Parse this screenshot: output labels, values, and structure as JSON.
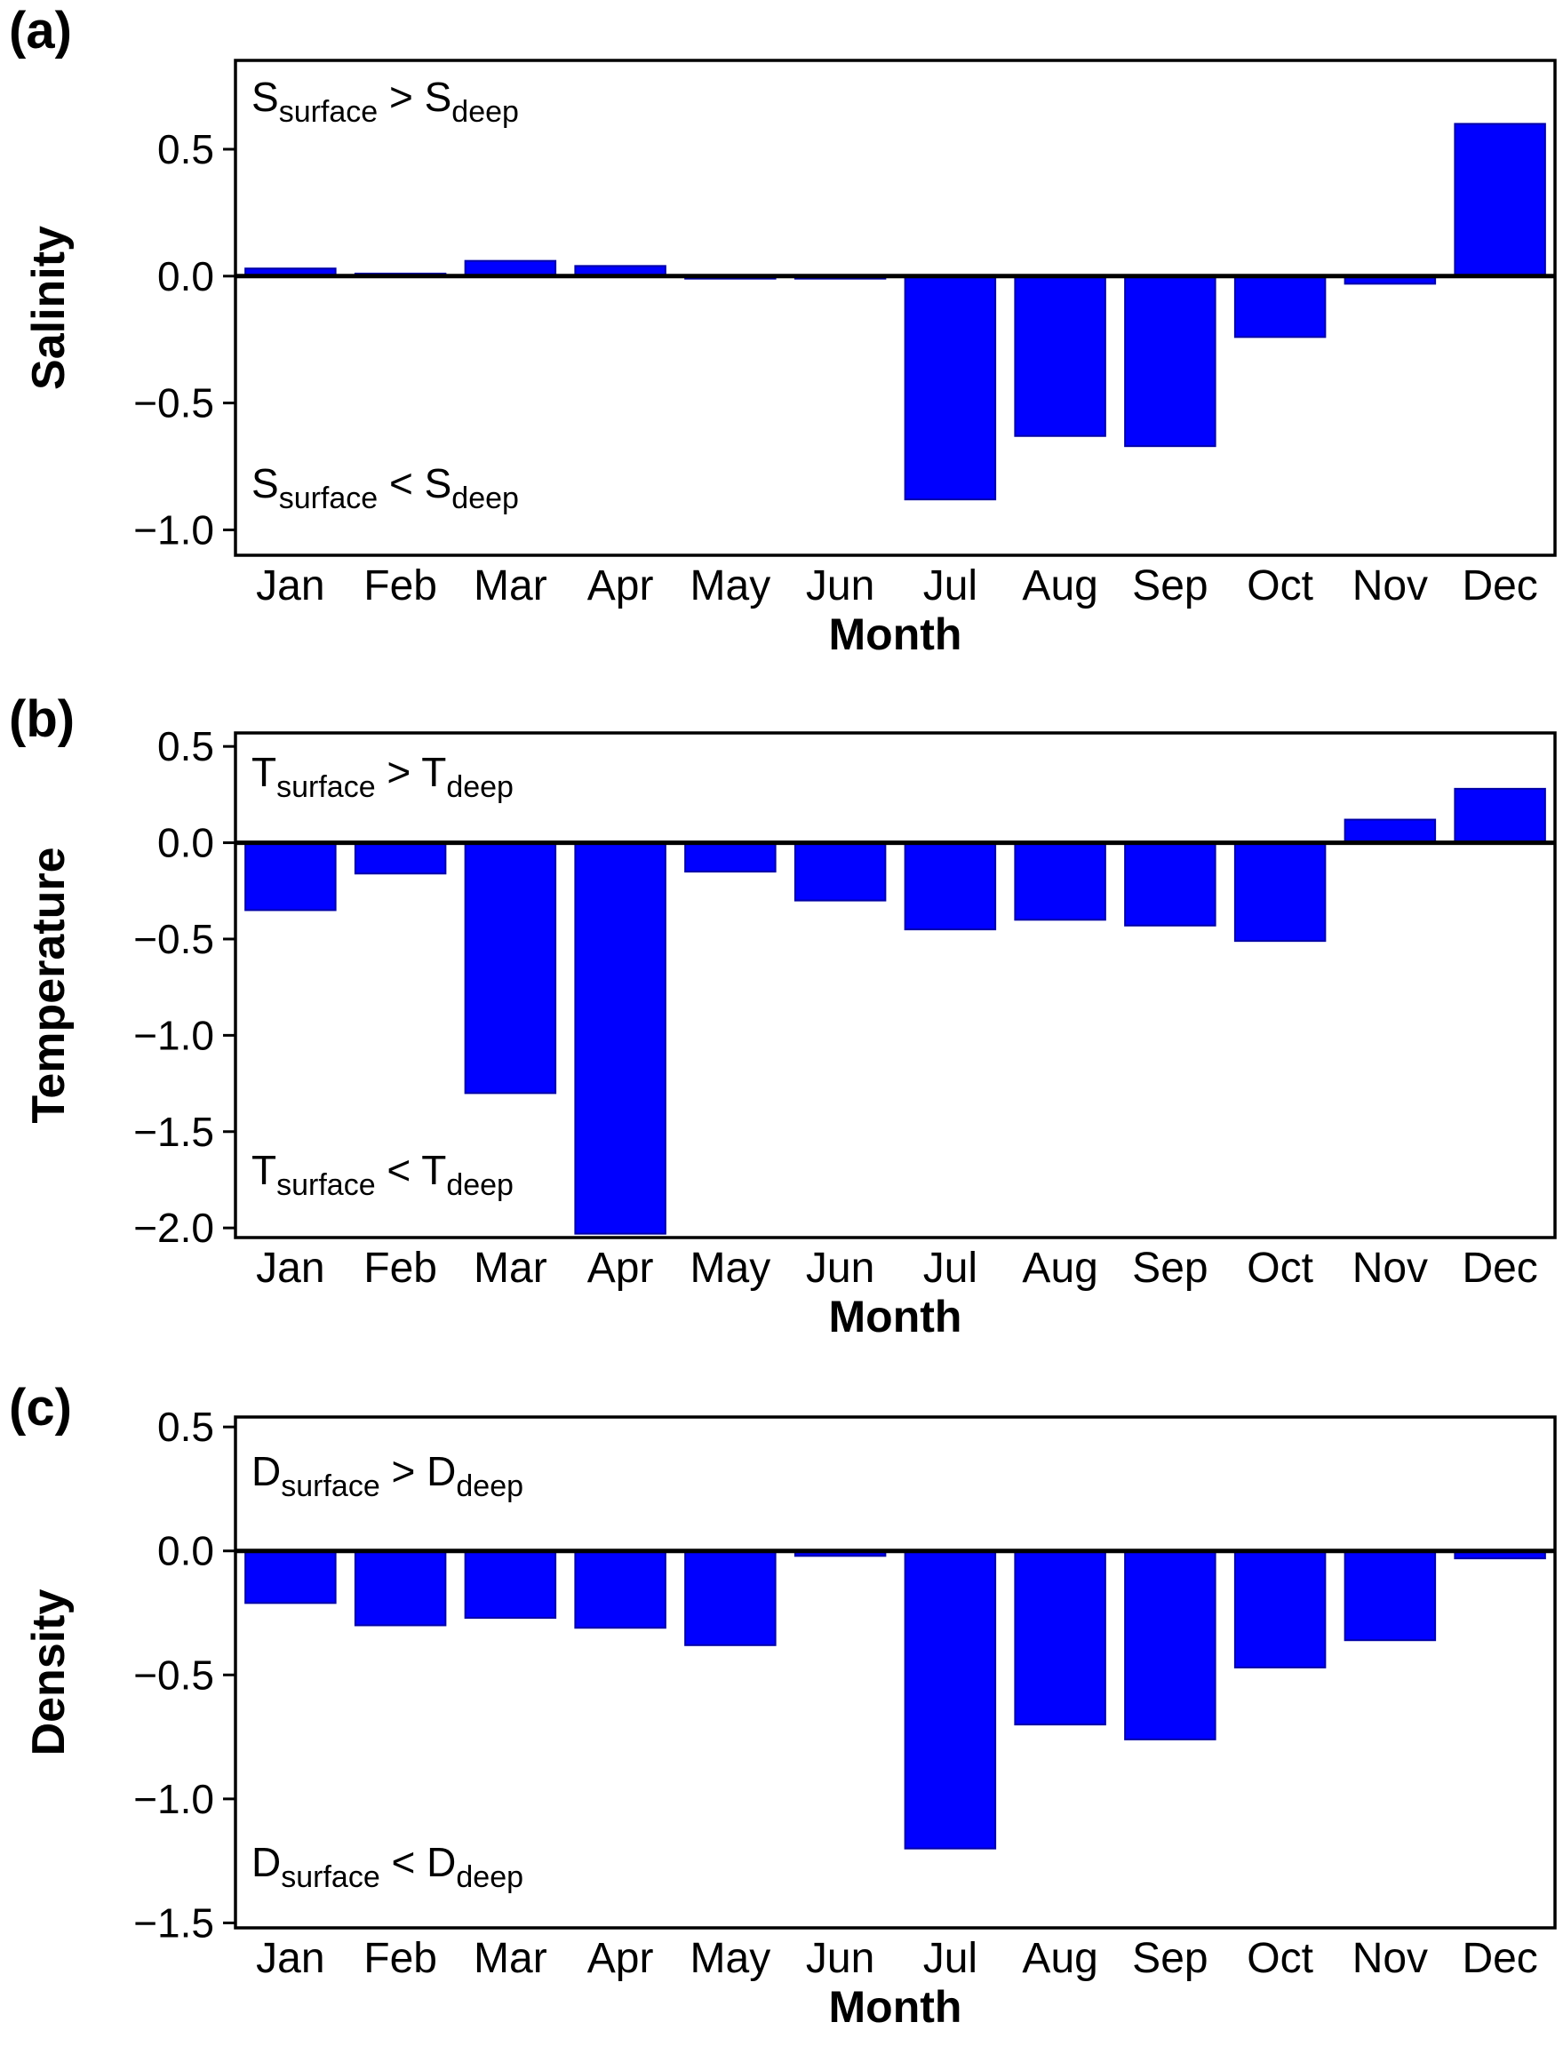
{
  "figure": {
    "background": "#ffffff",
    "bar_color": "#0000ff",
    "bar_edge_color": "#0000a8",
    "axis_color": "#000000"
  },
  "chart_data": [
    {
      "panel_label": "(a)",
      "type": "bar",
      "title": "",
      "xlabel": "Month",
      "ylabel": "Salinity",
      "categories": [
        "Jan",
        "Feb",
        "Mar",
        "Apr",
        "May",
        "Jun",
        "Jul",
        "Aug",
        "Sep",
        "Oct",
        "Nov",
        "Dec"
      ],
      "values": [
        0.03,
        0.01,
        0.06,
        0.04,
        -0.01,
        -0.01,
        -0.88,
        -0.63,
        -0.67,
        -0.24,
        -0.03,
        0.6
      ],
      "ylim": [
        -1.1,
        0.85
      ],
      "yticks": [
        0.5,
        0.0,
        -0.5,
        -1.0
      ],
      "ytick_labels": [
        "0.5",
        "0.0",
        "−0.5",
        "−1.0"
      ],
      "grid": false,
      "legend": "none",
      "annotations": {
        "top": {
          "symbol": "S",
          "symbol_sub": "surface",
          "operator": ">",
          "symbol2": "S",
          "symbol2_sub": "deep"
        },
        "bottom": {
          "symbol": "S",
          "symbol_sub": "surface",
          "operator": "<",
          "symbol2": "S",
          "symbol2_sub": "deep"
        }
      }
    },
    {
      "panel_label": "(b)",
      "type": "bar",
      "title": "",
      "xlabel": "Month",
      "ylabel": "Temperature",
      "categories": [
        "Jan",
        "Feb",
        "Mar",
        "Apr",
        "May",
        "Jun",
        "Jul",
        "Aug",
        "Sep",
        "Oct",
        "Nov",
        "Dec"
      ],
      "values": [
        -0.35,
        -0.16,
        -1.3,
        -2.03,
        -0.15,
        -0.3,
        -0.45,
        -0.4,
        -0.43,
        -0.51,
        0.12,
        0.28
      ],
      "ylim": [
        -2.05,
        0.57
      ],
      "yticks": [
        0.5,
        0.0,
        -0.5,
        -1.0,
        -1.5,
        -2.0
      ],
      "ytick_labels": [
        "0.5",
        "0.0",
        "−0.5",
        "−1.0",
        "−1.5",
        "−2.0"
      ],
      "grid": false,
      "legend": "none",
      "annotations": {
        "top": {
          "symbol": "T",
          "symbol_sub": "surface",
          "operator": ">",
          "symbol2": "T",
          "symbol2_sub": "deep"
        },
        "bottom": {
          "symbol": "T",
          "symbol_sub": "surface",
          "operator": "<",
          "symbol2": "T",
          "symbol2_sub": "deep"
        }
      }
    },
    {
      "panel_label": "(c)",
      "type": "bar",
      "title": "",
      "xlabel": "Month",
      "ylabel": "Density",
      "categories": [
        "Jan",
        "Feb",
        "Mar",
        "Apr",
        "May",
        "Jun",
        "Jul",
        "Aug",
        "Sep",
        "Oct",
        "Nov",
        "Dec"
      ],
      "values": [
        -0.21,
        -0.3,
        -0.27,
        -0.31,
        -0.38,
        -0.02,
        -1.2,
        -0.7,
        -0.76,
        -0.47,
        -0.36,
        -0.03
      ],
      "ylim": [
        -1.52,
        0.54
      ],
      "yticks": [
        0.5,
        0.0,
        -0.5,
        -1.0,
        -1.5
      ],
      "ytick_labels": [
        "0.5",
        "0.0",
        "−0.5",
        "−1.0",
        "−1.5"
      ],
      "grid": false,
      "legend": "none",
      "annotations": {
        "top": {
          "symbol": "D",
          "symbol_sub": "surface",
          "operator": ">",
          "symbol2": "D",
          "symbol2_sub": "deep"
        },
        "bottom": {
          "symbol": "D",
          "symbol_sub": "surface",
          "operator": "<",
          "symbol2": "D",
          "symbol2_sub": "deep"
        }
      }
    }
  ]
}
